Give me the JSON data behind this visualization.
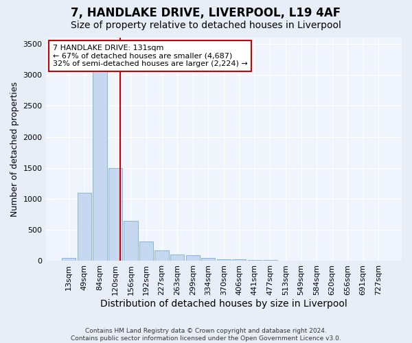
{
  "title1": "7, HANDLAKE DRIVE, LIVERPOOL, L19 4AF",
  "title2": "Size of property relative to detached houses in Liverpool",
  "xlabel": "Distribution of detached houses by size in Liverpool",
  "ylabel": "Number of detached properties",
  "footnote": "Contains HM Land Registry data © Crown copyright and database right 2024.\nContains public sector information licensed under the Open Government Licence v3.0.",
  "bin_labels": [
    "13sqm",
    "49sqm",
    "84sqm",
    "120sqm",
    "156sqm",
    "192sqm",
    "227sqm",
    "263sqm",
    "299sqm",
    "334sqm",
    "370sqm",
    "406sqm",
    "441sqm",
    "477sqm",
    "513sqm",
    "549sqm",
    "584sqm",
    "620sqm",
    "656sqm",
    "691sqm",
    "727sqm"
  ],
  "bar_heights": [
    50,
    1100,
    3400,
    1500,
    650,
    320,
    175,
    110,
    90,
    50,
    30,
    25,
    20,
    12,
    0,
    0,
    0,
    0,
    0,
    0,
    0
  ],
  "bar_color": "#c5d8f0",
  "bar_edge_color": "#7aaed4",
  "vline_color": "#cc0000",
  "vline_pos": 3.3,
  "annotation_box_text": "7 HANDLAKE DRIVE: 131sqm\n← 67% of detached houses are smaller (4,687)\n32% of semi-detached houses are larger (2,224) →",
  "ylim": [
    0,
    3600
  ],
  "yticks": [
    0,
    500,
    1000,
    1500,
    2000,
    2500,
    3000,
    3500
  ],
  "bg_color": "#e8eef8",
  "plot_bg_color": "#f0f4fc",
  "grid_color": "#ffffff",
  "title1_fontsize": 12,
  "title2_fontsize": 10,
  "xlabel_fontsize": 10,
  "ylabel_fontsize": 9,
  "tick_fontsize": 8,
  "annot_fontsize": 8
}
